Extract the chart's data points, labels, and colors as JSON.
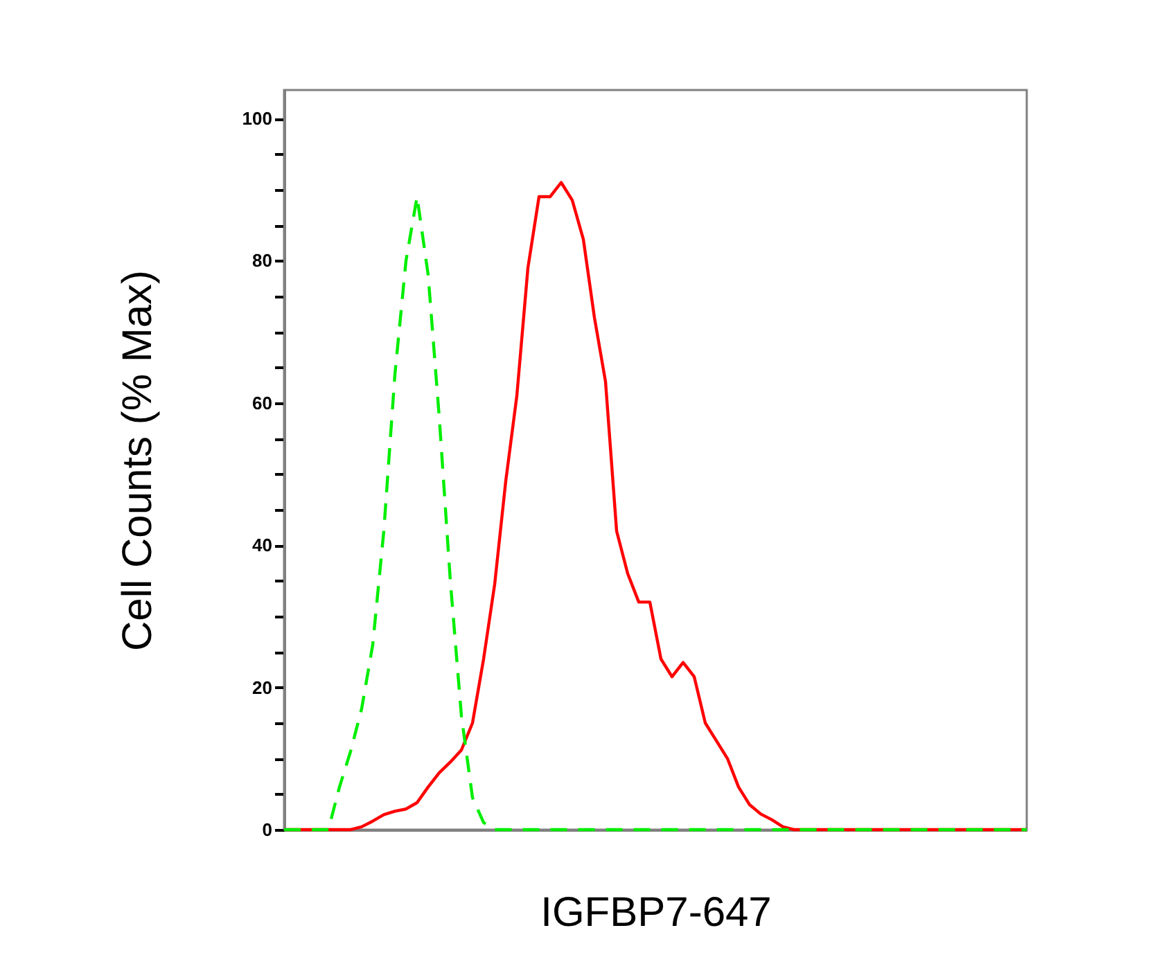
{
  "chart_data": {
    "type": "line",
    "xlabel": "IGFBP7-647",
    "ylabel": "Cell Counts (% Max)",
    "categories": [
      null,
      null,
      null,
      null,
      null,
      null,
      null,
      null,
      null,
      null,
      null,
      null,
      null,
      null,
      null,
      null,
      null,
      null,
      null,
      null,
      null,
      null,
      null,
      null,
      null,
      null,
      null,
      null,
      null,
      null,
      null,
      null,
      null,
      null,
      null,
      null,
      null,
      null,
      null,
      null,
      null,
      null,
      null,
      null,
      null,
      null,
      null,
      null,
      null,
      null,
      null,
      null,
      null,
      null,
      null,
      null,
      null,
      null,
      null,
      null,
      null,
      null,
      null,
      null,
      null,
      null,
      null,
      null
    ],
    "series": [
      {
        "color": "#00ee00",
        "line_style": "dashed",
        "values": [
          0,
          0,
          0,
          0,
          0,
          6,
          11,
          17,
          26,
          42,
          64,
          80,
          89,
          78,
          58,
          35,
          16,
          4.5,
          1,
          0,
          0,
          0,
          0,
          0,
          0,
          0,
          0,
          0,
          0,
          0,
          0,
          0,
          0,
          0,
          0,
          0,
          0,
          0,
          0,
          0,
          0,
          0,
          0,
          0,
          0,
          0,
          0,
          0,
          0,
          0,
          0,
          0,
          0,
          0,
          0,
          0,
          0,
          0,
          0,
          0,
          0,
          0,
          0,
          0,
          0,
          0,
          0,
          0
        ]
      },
      {
        "color": "#ff0000",
        "line_style": "solid",
        "values": [
          0,
          0,
          0,
          0,
          0,
          0,
          0,
          0.4,
          1.2,
          2.1,
          2.6,
          2.9,
          3.8,
          6,
          8,
          9.5,
          11.2,
          15,
          24,
          34.5,
          49,
          61,
          79,
          89,
          89,
          91,
          88.5,
          83,
          72,
          63,
          42,
          36,
          32,
          32,
          24,
          21.5,
          23.5,
          21.5,
          15,
          12.5,
          10,
          6,
          3.5,
          2.2,
          1.4,
          0.4,
          0,
          0,
          0,
          0,
          0,
          0,
          0,
          0,
          0,
          0,
          0,
          0,
          0,
          0,
          0,
          0,
          0,
          0,
          0,
          0,
          0,
          0
        ]
      }
    ],
    "ylim": [
      0,
      104
    ],
    "yticks": [
      0,
      {
        "value": 5,
        "label": null
      },
      {
        "value": 10,
        "label": null
      },
      {
        "value": 15,
        "label": null
      },
      20,
      {
        "value": 25,
        "label": null
      },
      {
        "value": 30,
        "label": null
      },
      {
        "value": 35,
        "label": null
      },
      40,
      {
        "value": 45,
        "label": null
      },
      {
        "value": 50,
        "label": null
      },
      {
        "value": 55,
        "label": null
      },
      60,
      {
        "value": 65,
        "label": null
      },
      {
        "value": 70,
        "label": null
      },
      {
        "value": 75,
        "label": null
      },
      80,
      {
        "value": 85,
        "label": null
      },
      {
        "value": 90,
        "label": null
      },
      {
        "value": 95,
        "label": null
      },
      100
    ],
    "grid": false,
    "legend": false,
    "marker": "none"
  }
}
